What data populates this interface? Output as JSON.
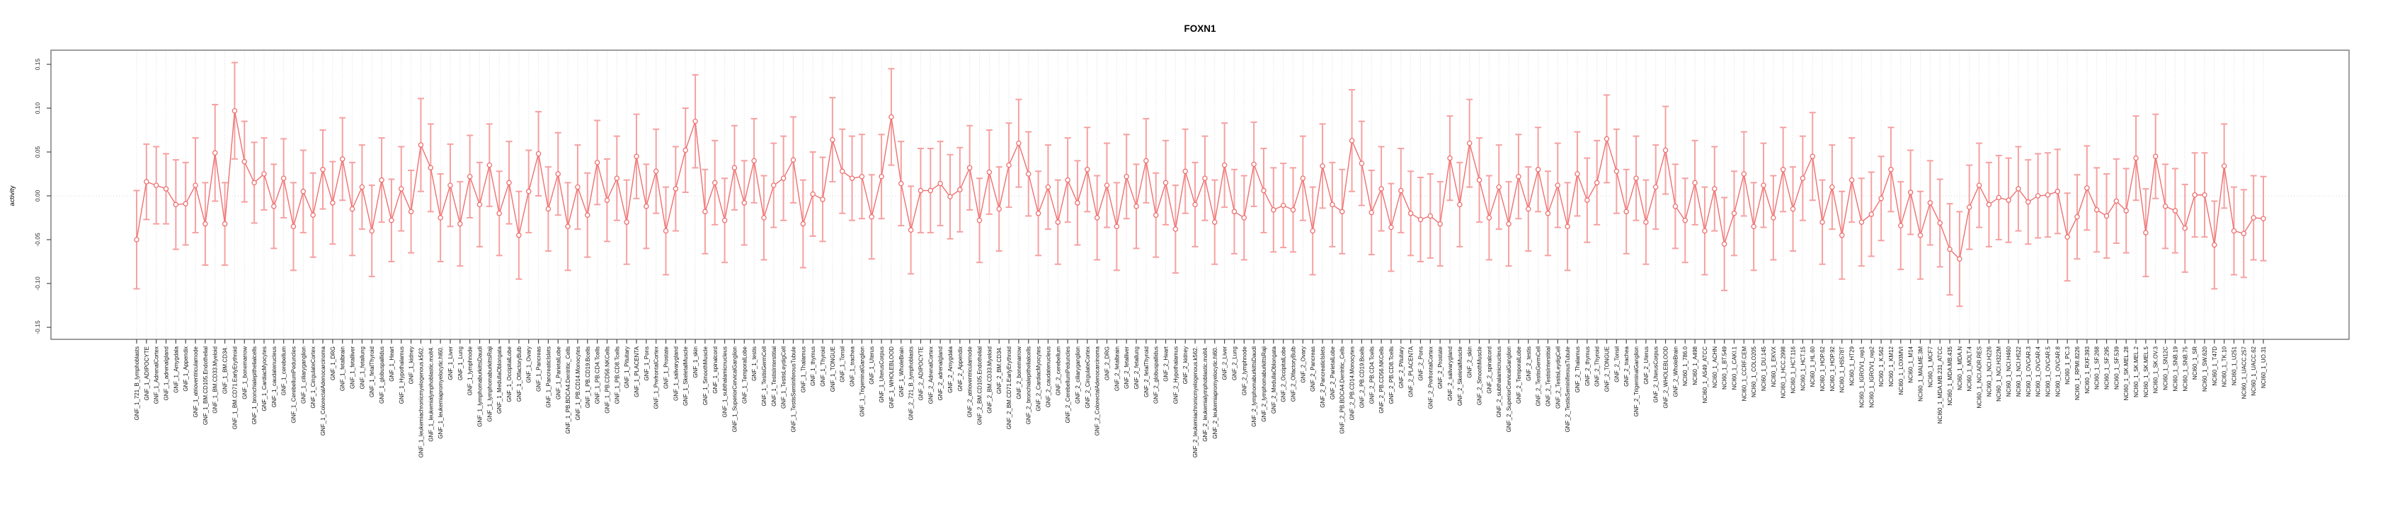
{
  "title": "FOXN1",
  "chart_data": {
    "type": "line",
    "title": "FOXN1",
    "xlabel": "",
    "ylabel": "activity",
    "ylim": [
      -0.165,
      0.165
    ],
    "yticks": [
      -0.15,
      -0.1,
      -0.05,
      0.0,
      0.05,
      0.1,
      0.15
    ],
    "ytick_labels": [
      "-0.15",
      "-0.10",
      "-0.05",
      "0.00",
      "0.05",
      "0.10",
      "0.15"
    ],
    "grid": "vertical-dotted-per-category",
    "zero_line": "dotted",
    "legend_position": "none",
    "point_marker": "open-circle",
    "error_bars": "vertical-with-caps",
    "colors": {
      "series": "#ee7070",
      "error_bar": "#f6a1a1",
      "grid": "#dedede",
      "zero_line": "#d6d6d6",
      "box": "#7f7f7f",
      "tick": "#4a4a4a"
    },
    "categories": [
      "GNF_1_721_B_lymphoblasts",
      "GNF_1_ADIPOCYTE",
      "GNF_1_AdrenalCortex",
      "GNF_1_adrenalgland",
      "GNF_1_Amygdala",
      "GNF_1_Appendix",
      "GNF_1_atrioventricularnode",
      "GNF_1_BM.CD105.Endothelial",
      "GNF_1_BM.CD33.Myeloid",
      "GNF_1_BM.CD34.",
      "GNF_1_BM.CD71.EarlyErythroid",
      "GNF_1_bonemarrow",
      "GNF_1_bronchialepithelialcells",
      "GNF_1_CardiacMyocytes",
      "GNF_1_caudatenucleus",
      "GNF_1_cerebellum",
      "GNF_1_CerebellumPeduncles",
      "GNF_1_ciliaryganglion",
      "GNF_1_CingulateCortex",
      "GNF_1_ColorectalAdenocarcinoma",
      "GNF_1_DRG",
      "GNF_1_fetalbrain",
      "GNF_1_fetalliver",
      "GNF_1_fetallung",
      "GNF_1_fetalThyroid",
      "GNF_1_globuspallidus",
      "GNF_1_Heart",
      "GNF_1_Hypothalamus",
      "GNF_1_kidney",
      "GNF_1_leukemiachronicmyelogenous.k562.",
      "GNF_1_leukemialymphoblastic.molt4.",
      "GNF_1_leukemiapromyelocytic.hl60.",
      "GNF_1_Liver",
      "GNF_1_Lung",
      "GNF_1_lymphnode",
      "GNF_1_lymphomaburkittsDaudi",
      "GNF_1_lymphomaburkittsRaji",
      "GNF_1_MedullaOblongata",
      "GNF_1_OccipitalLobe",
      "GNF_1_OlfactoryBulb",
      "GNF_1_Ovary",
      "GNF_1_Pancreas",
      "GNF_1_PancreaticIslets",
      "GNF_1_ParietalLobe",
      "GNF_1_PB.BDCA4.Dentritic_Cells",
      "GNF_1_PB.CD14.Monocytes",
      "GNF_1_PB.CD19.Bcells",
      "GNF_1_PB.CD4.Tcells",
      "GNF_1_PB.CD56.NKCells",
      "GNF_1_PB.CD8.Tcells",
      "GNF_1_Pituitary",
      "GNF_1_PLACENTA",
      "GNF_1_Pons",
      "GNF_1_PrefrontalCortex",
      "GNF_1_Prostate",
      "GNF_1_salivarygland",
      "GNF_1_SkeletalMuscle",
      "GNF_1_skin",
      "GNF_1_SmoothMuscle",
      "GNF_1_spinalcord",
      "GNF_1_subthalamicnucleus",
      "GNF_1_SuperiorCervicalGanglion",
      "GNF_1_TemporalLobe",
      "GNF_1_testis",
      "GNF_1_TestisGermCell",
      "GNF_1_TestisInterstitial",
      "GNF_1_TestisLeydigCell",
      "GNF_1_TestisSeminiferousTubule",
      "GNF_1_Thalamus",
      "GNF_1_thymus",
      "GNF_1_Thyroid",
      "GNF_1_TONGUE",
      "GNF_1_Tonsil",
      "GNF_1_trachea",
      "GNF_1_TrigeminalGanglion",
      "GNF_1_Uterus",
      "GNF_1_UterusCorpus",
      "GNF_1_WHOLEBLOOD",
      "GNF_1_WholeBrain",
      "GNF_2_721_B_lymphoblasts",
      "GNF_2_ADIPOCYTE",
      "GNF_2_AdrenalCortex",
      "GNF_2_adrenalgland",
      "GNF_2_Amygdala",
      "GNF_2_Appendix",
      "GNF_2_atrioventricularnode",
      "GNF_2_BM.CD105.Endothelial",
      "GNF_2_BM.CD33.Myeloid",
      "GNF_2_BM.CD34.",
      "GNF_2_BM.CD71.EarlyErythroid",
      "GNF_2_bonemarrow",
      "GNF_2_bronchialepithelialcells",
      "GNF_2_CardiacMyocytes",
      "GNF_2_caudatenucleus",
      "GNF_2_cerebellum",
      "GNF_2_CerebellumPeduncles",
      "GNF_2_ciliaryganglion",
      "GNF_2_CingulateCortex",
      "GNF_2_ColorectalAdenocarcinoma",
      "GNF_2_DRG",
      "GNF_2_fetalbrain",
      "GNF_2_fetalliver",
      "GNF_2_fetallung",
      "GNF_2_fetalThyroid",
      "GNF_2_globuspallidus",
      "GNF_2_Heart",
      "GNF_2_Hypothalamus",
      "GNF_2_kidney",
      "GNF_2_leukemiachronicmyelogenous.k562.",
      "GNF_2_leukemialymphoblastic.molt4.",
      "GNF_2_leukemiapromyelocytic.hl60.",
      "GNF_2_Liver",
      "GNF_2_Lung",
      "GNF_2_lymphnode",
      "GNF_2_lymphomaburkittsDaudi",
      "GNF_2_lymphomaburkittsRaji",
      "GNF_2_MedullaOblongata",
      "GNF_2_OccipitalLobe",
      "GNF_2_OlfactoryBulb",
      "GNF_2_Ovary",
      "GNF_2_Pancreas",
      "GNF_2_PancreaticIslets",
      "GNF_2_ParietalLobe",
      "GNF_2_PB.BDCA4.Dentritic_Cells",
      "GNF_2_PB.CD14.Monocytes",
      "GNF_2_PB.CD19.Bcells",
      "GNF_2_PB.CD4.Tcells",
      "GNF_2_PB.CD56.NKCells",
      "GNF_2_PB.CD8.Tcells",
      "GNF_2_Pituitary",
      "GNF_2_PLACENTA",
      "GNF_2_Pons",
      "GNF_2_PrefrontalCortex",
      "GNF_2_Prostate",
      "GNF_2_salivarygland",
      "GNF_2_SkeletalMuscle",
      "GNF_2_skin",
      "GNF_2_SmoothMuscle",
      "GNF_2_spinalcord",
      "GNF_2_subthalamicnucleus",
      "GNF_2_SuperiorCervicalGanglion",
      "GNF_2_TemporalLobe",
      "GNF_2_testis",
      "GNF_2_TestisGermCell",
      "GNF_2_TestisInterstitial",
      "GNF_2_TestisLeydigCell",
      "GNF_2_TestisSeminiferousTubule",
      "GNF_2_Thalamus",
      "GNF_2_thymus",
      "GNF_2_Thyroid",
      "GNF_2_TONGUE",
      "GNF_2_Tonsil",
      "GNF_2_trachea",
      "GNF_2_TrigeminalGanglion",
      "GNF_2_Uterus",
      "GNF_2_UterusCorpus",
      "GNF_2_WHOLEBLOOD",
      "GNF_2_WholeBrain",
      "NCI60_1_786.0",
      "NCI60_1_A498",
      "NCI60_1_A549_ATCC",
      "NCI60_1_ACHN",
      "NCI60_1_BT.549",
      "NCI60_1_CAKI.1",
      "NCI60_1_CCRF.CEM",
      "NCI60_1_COLO205",
      "NCI60_1_DU.145",
      "NCI60_1_EKVX",
      "NCI60_1_HCC.2998",
      "NCI60_1_HCT.116",
      "NCI60_1_HCT.15",
      "NCI60_1_HL.60",
      "NCI60_1_HOP.62",
      "NCI60_1_HOP.92",
      "NCI60_1_HS578T",
      "NCI60_1_HT29",
      "NCI60_1_IGROV1_rep1",
      "NCI60_1_IGROV1_rep2",
      "NCI60_1_K.562",
      "NCI60_1_KM12",
      "NCI60_1_LOXIMVI",
      "NCI60_1_M14",
      "NCI60_1_MALME.3M",
      "NCI60_1_MCF7",
      "NCI60_1_MDA.MB.231_ATCC",
      "NCI60_1_MDA.MB.435",
      "NCI60_1_MDA.N",
      "NCI60_1_MOLT.4",
      "NCI60_1_NCI.ADR.RES",
      "NCI60_1_NCI.H226",
      "NCI60_1_NCI.H322M",
      "NCI60_1_NCI.H460",
      "NCI60_1_NCI.H522",
      "NCI60_1_OVCAR.3",
      "NCI60_1_OVCAR.4",
      "NCI60_1_OVCAR.5",
      "NCI60_1_OVCAR.8",
      "NCI60_1_PC.3",
      "NCI60_1_RPMI.8226",
      "NCI60_1_RXF.393",
      "NCI60_1_SF.268",
      "NCI60_1_SF.295",
      "NCI60_1_SF.539",
      "NCI60_1_SK.MEL.28",
      "NCI60_1_SK.MEL.2",
      "NCI60_1_SK.MEL.5",
      "NCI60_1_SK.OV.3",
      "NCI60_1_SN12C",
      "NCI60_1_SNB.19",
      "NCI60_1_SNB.75",
      "NCI60_1_SR",
      "NCI60_1_SW.620",
      "NCI60_1_T47D",
      "NCI60_1_TK.10",
      "NCI60_1_U251",
      "NCI60_1_UACC.257",
      "NCI60_1_UACC.62",
      "NCI60_1_UO.31"
    ],
    "series": [
      {
        "name": "activity",
        "values": [
          -0.05,
          0.016,
          0.012,
          0.008,
          -0.01,
          -0.009,
          0.012,
          -0.032,
          0.049,
          -0.032,
          0.097,
          0.039,
          0.015,
          0.025,
          -0.012,
          0.02,
          -0.035,
          0.005,
          -0.022,
          0.03,
          -0.008,
          0.042,
          -0.015,
          0.01,
          -0.04,
          0.018,
          -0.028,
          0.008,
          -0.018,
          0.058,
          0.032,
          -0.025,
          0.012,
          -0.032,
          0.022,
          -0.01,
          0.035,
          -0.02,
          0.015,
          -0.045,
          0.005,
          0.048,
          -0.015,
          0.025,
          -0.035,
          0.01,
          -0.022,
          0.038,
          -0.005,
          0.02,
          -0.03,
          0.045,
          -0.012,
          0.028,
          -0.04,
          0.008,
          0.052,
          0.085,
          -0.018,
          0.015,
          -0.028,
          0.032,
          -0.008,
          0.04,
          -0.025,
          0.012,
          0.02,
          0.041,
          -0.032,
          0.002,
          -0.004,
          0.064,
          0.028,
          0.02,
          0.022,
          -0.024,
          0.022,
          0.09,
          0.014,
          -0.039,
          0.006,
          0.006,
          0.014,
          -0.001,
          0.007,
          0.032,
          -0.028,
          0.027,
          -0.015,
          0.035,
          0.06,
          0.025,
          -0.02,
          0.01,
          -0.03,
          0.018,
          -0.008,
          0.03,
          -0.025,
          0.012,
          -0.035,
          0.022,
          -0.012,
          0.04,
          -0.022,
          0.015,
          -0.038,
          0.028,
          -0.01,
          0.02,
          -0.03,
          0.035,
          -0.018,
          -0.025,
          0.036,
          0.006,
          -0.016,
          -0.011,
          -0.016,
          0.02,
          -0.04,
          0.034,
          -0.01,
          -0.018,
          0.063,
          0.037,
          -0.019,
          0.008,
          -0.036,
          0.006,
          -0.02,
          -0.027,
          -0.023,
          -0.032,
          0.043,
          -0.01,
          0.06,
          0.018,
          -0.025,
          0.01,
          -0.032,
          0.022,
          -0.015,
          0.03,
          -0.02,
          0.012,
          -0.035,
          0.025,
          -0.005,
          0.015,
          0.065,
          0.028,
          -0.018,
          0.02,
          -0.03,
          0.01,
          0.052,
          -0.012,
          -0.028,
          0.015,
          -0.04,
          0.008,
          -0.055,
          -0.02,
          0.025,
          -0.035,
          0.012,
          -0.025,
          0.03,
          -0.015,
          0.02,
          0.045,
          -0.03,
          0.01,
          -0.045,
          0.018,
          -0.03,
          -0.021,
          -0.003,
          0.03,
          -0.034,
          0.004,
          -0.045,
          -0.008,
          -0.031,
          -0.061,
          -0.072,
          -0.013,
          0.012,
          -0.01,
          -0.002,
          -0.005,
          0.008,
          -0.007,
          0.0,
          0.001,
          0.005,
          -0.047,
          -0.024,
          0.009,
          -0.016,
          -0.023,
          -0.006,
          -0.017,
          0.043,
          -0.042,
          0.045,
          -0.012,
          -0.017,
          -0.037,
          0.001,
          0.001,
          -0.056,
          0.034,
          -0.04,
          -0.043,
          -0.025,
          -0.026
        ],
        "ci_half_width": [
          0.056,
          0.043,
          0.044,
          0.04,
          0.051,
          0.047,
          0.054,
          0.047,
          0.055,
          0.047,
          0.055,
          0.046,
          0.046,
          0.041,
          0.048,
          0.045,
          0.05,
          0.047,
          0.048,
          0.045,
          0.047,
          0.047,
          0.053,
          0.048,
          0.052,
          0.048,
          0.047,
          0.048,
          0.047,
          0.053,
          0.05,
          0.05,
          0.047,
          0.048,
          0.047,
          0.048,
          0.047,
          0.048,
          0.047,
          0.05,
          0.047,
          0.048,
          0.048,
          0.047,
          0.05,
          0.048,
          0.048,
          0.048,
          0.047,
          0.048,
          0.048,
          0.048,
          0.048,
          0.048,
          0.05,
          0.048,
          0.048,
          0.053,
          0.048,
          0.048,
          0.048,
          0.048,
          0.048,
          0.048,
          0.048,
          0.048,
          0.048,
          0.049,
          0.05,
          0.048,
          0.048,
          0.048,
          0.048,
          0.048,
          0.048,
          0.048,
          0.048,
          0.055,
          0.048,
          0.05,
          0.048,
          0.048,
          0.048,
          0.048,
          0.048,
          0.048,
          0.048,
          0.048,
          0.048,
          0.048,
          0.05,
          0.048,
          0.048,
          0.048,
          0.048,
          0.048,
          0.048,
          0.048,
          0.048,
          0.048,
          0.05,
          0.048,
          0.048,
          0.048,
          0.048,
          0.048,
          0.05,
          0.048,
          0.048,
          0.048,
          0.048,
          0.048,
          0.048,
          0.048,
          0.048,
          0.048,
          0.048,
          0.048,
          0.048,
          0.048,
          0.05,
          0.048,
          0.048,
          0.048,
          0.058,
          0.048,
          0.048,
          0.048,
          0.05,
          0.048,
          0.048,
          0.048,
          0.048,
          0.048,
          0.048,
          0.048,
          0.05,
          0.048,
          0.048,
          0.048,
          0.048,
          0.048,
          0.048,
          0.048,
          0.048,
          0.048,
          0.05,
          0.048,
          0.048,
          0.048,
          0.05,
          0.048,
          0.048,
          0.048,
          0.048,
          0.048,
          0.05,
          0.048,
          0.048,
          0.048,
          0.05,
          0.048,
          0.053,
          0.048,
          0.048,
          0.05,
          0.048,
          0.048,
          0.048,
          0.048,
          0.048,
          0.05,
          0.048,
          0.048,
          0.05,
          0.048,
          0.05,
          0.048,
          0.048,
          0.048,
          0.05,
          0.048,
          0.05,
          0.048,
          0.05,
          0.052,
          0.054,
          0.048,
          0.048,
          0.048,
          0.048,
          0.048,
          0.048,
          0.048,
          0.048,
          0.048,
          0.048,
          0.05,
          0.048,
          0.048,
          0.048,
          0.048,
          0.048,
          0.048,
          0.048,
          0.05,
          0.048,
          0.048,
          0.048,
          0.05,
          0.048,
          0.048,
          0.05,
          0.048,
          0.05,
          0.05,
          0.048,
          0.048
        ]
      }
    ]
  }
}
